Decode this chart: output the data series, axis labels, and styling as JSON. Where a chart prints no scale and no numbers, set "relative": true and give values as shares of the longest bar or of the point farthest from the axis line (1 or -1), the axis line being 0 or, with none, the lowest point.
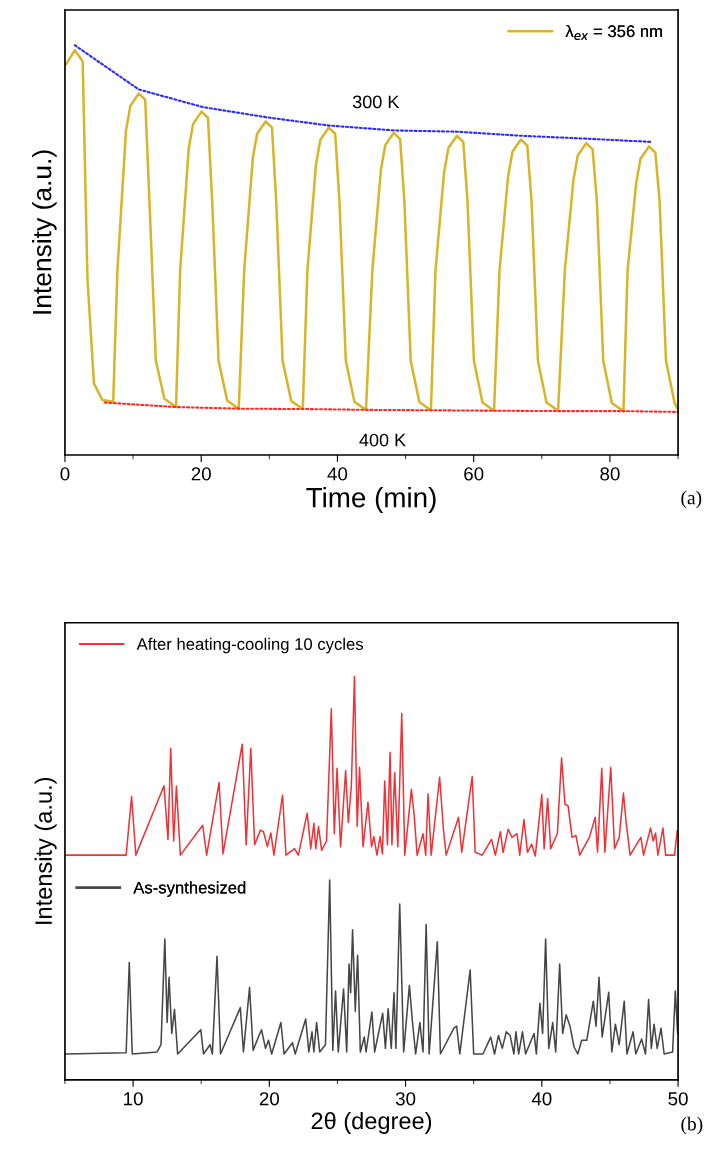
{
  "chart_data": [
    {
      "type": "line",
      "xlabel": "Time (min)",
      "ylabel": "Intensity (a.u.)",
      "xlim": [
        0,
        90
      ],
      "xticks": [
        0,
        20,
        40,
        60,
        80
      ],
      "relative": true,
      "tick_labels": "x",
      "legend": "top right",
      "annotations": [
        "300 K",
        "400 K",
        "(a)"
      ],
      "series": [
        {
          "name": "λ$_{ex}$ = 356 nm",
          "color": "#d8b428",
          "line_style": "solid",
          "x": [
            0.19,
            1.44,
            2.26,
            2.6,
            3.3,
            4.26,
            5.5,
            7.08,
            7.7,
            8.96,
            9.6,
            10.84,
            11.78,
            12.4,
            13.34,
            14.6,
            16.3,
            16.91,
            18.17,
            18.81,
            20.05,
            20.99,
            21.61,
            22.55,
            23.81,
            25.51,
            26.31,
            27.57,
            28.21,
            29.45,
            30.39,
            31.01,
            31.95,
            33.21,
            34.91,
            35.59,
            36.85,
            37.49,
            38.73,
            39.67,
            40.29,
            41.23,
            42.49,
            44.19,
            45.12,
            46.38,
            47.02,
            48.26,
            49.2,
            49.82,
            50.76,
            52.02,
            53.72,
            54.39,
            55.65,
            56.29,
            57.53,
            58.47,
            59.09,
            60.03,
            61.29,
            62.99,
            63.79,
            65.05,
            65.69,
            66.93,
            67.87,
            68.49,
            69.43,
            70.69,
            72.39,
            73.38,
            74.64,
            75.28,
            76.52,
            77.46,
            78.08,
            79.02,
            80.28,
            81.98,
            82.59,
            83.85,
            84.49,
            85.73,
            86.67,
            87.29,
            88.23,
            89.49,
            90
          ],
          "values": [
            0.954,
            0.988,
            0.969,
            0.96,
            0.43,
            0.174,
            0.134,
            0.13,
            0.45,
            0.792,
            0.852,
            0.882,
            0.867,
            0.62,
            0.23,
            0.137,
            0.117,
            0.45,
            0.748,
            0.808,
            0.838,
            0.823,
            0.62,
            0.23,
            0.133,
            0.113,
            0.45,
            0.724,
            0.784,
            0.814,
            0.799,
            0.62,
            0.23,
            0.132,
            0.112,
            0.45,
            0.709,
            0.769,
            0.799,
            0.784,
            0.62,
            0.23,
            0.13,
            0.11,
            0.45,
            0.696,
            0.756,
            0.786,
            0.771,
            0.62,
            0.23,
            0.129,
            0.109,
            0.45,
            0.689,
            0.749,
            0.779,
            0.764,
            0.62,
            0.23,
            0.128,
            0.108,
            0.45,
            0.68,
            0.74,
            0.77,
            0.755,
            0.62,
            0.23,
            0.128,
            0.108,
            0.45,
            0.671,
            0.731,
            0.761,
            0.746,
            0.62,
            0.23,
            0.127,
            0.107,
            0.45,
            0.663,
            0.723,
            0.753,
            0.738,
            0.62,
            0.23,
            0.127,
            0.11
          ]
        },
        {
          "color": "#2a2aff",
          "line_style": "dotted",
          "x": [
            1.44,
            10.84,
            20.24,
            29.64,
            38.73,
            48.44,
            57.53,
            66.93,
            76.52,
            86.05
          ],
          "values": [
            1.0,
            0.892,
            0.849,
            0.824,
            0.804,
            0.792,
            0.789,
            0.779,
            0.772,
            0.764
          ]
        },
        {
          "color": "#ff2a2a",
          "line_style": "dotted",
          "x": [
            5.83,
            16.17,
            25.57,
            35.28,
            44.68,
            54.08,
            63.17,
            72.57,
            81.97,
            90
          ],
          "values": [
            0.128,
            0.117,
            0.113,
            0.112,
            0.11,
            0.109,
            0.108,
            0.107,
            0.107,
            0.105
          ]
        }
      ]
    },
    {
      "type": "line",
      "xlabel": "2θ (degree)",
      "ylabel": "Intensity (a.u.)",
      "xlim": [
        5,
        50
      ],
      "xticks": [
        10,
        20,
        30,
        40,
        50
      ],
      "relative": true,
      "tick_labels": "x",
      "legend": "top left",
      "annotations": [
        "(b)"
      ],
      "series": [
        {
          "name": "After heating-cooling 10 cycles",
          "color": "#ee3338",
          "line_style": "solid",
          "x": [
            5.06,
            9.49,
            9.89,
            10.2,
            12.27,
            12.56,
            12.76,
            12.98,
            13.18,
            13.47,
            15.11,
            15.4,
            16.31,
            16.6,
            18.01,
            18.3,
            18.64,
            18.92,
            19.35,
            19.57,
            19.86,
            20.11,
            20.34,
            20.97,
            21.22,
            21.85,
            22.13,
            22.78,
            23.04,
            23.27,
            23.41,
            23.61,
            23.84,
            24.2,
            24.55,
            24.77,
            24.97,
            25.23,
            25.6,
            25.8,
            26.02,
            26.25,
            26.45,
            26.62,
            26.88,
            27.24,
            27.5,
            27.67,
            27.9,
            28.13,
            28.3,
            28.47,
            28.67,
            28.86,
            29.0,
            29.2,
            29.43,
            29.72,
            29.94,
            30.43,
            30.63,
            30.85,
            31.28,
            31.48,
            31.65,
            31.88,
            32.5,
            32.78,
            32.98,
            33.89,
            34.12,
            34.89,
            35.11,
            35.63,
            36.31,
            36.59,
            36.96,
            37.16,
            37.53,
            37.81,
            38.18,
            38.38,
            38.69,
            38.95,
            39.26,
            39.52,
            40.0,
            40.17,
            40.43,
            40.65,
            41.14,
            41.45,
            41.7,
            41.93,
            42.22,
            42.5,
            42.78,
            43.49,
            43.92,
            44.09,
            44.4,
            44.63,
            45.06,
            45.34,
            45.68,
            45.99,
            46.19,
            46.48,
            47.27,
            47.47,
            47.98,
            48.18,
            48.35,
            48.52,
            48.89,
            49.09,
            49.74,
            49.94
          ],
          "values": [
            0.557,
            0.557,
            0.702,
            0.557,
            0.729,
            0.596,
            0.821,
            0.592,
            0.728,
            0.557,
            0.631,
            0.557,
            0.737,
            0.56,
            0.832,
            0.583,
            0.821,
            0.583,
            0.619,
            0.615,
            0.578,
            0.612,
            0.557,
            0.706,
            0.557,
            0.573,
            0.557,
            0.661,
            0.573,
            0.636,
            0.573,
            0.628,
            0.569,
            0.592,
            0.92,
            0.61,
            0.772,
            0.578,
            0.766,
            0.638,
            0.729,
            1.0,
            0.628,
            0.775,
            0.578,
            0.688,
            0.578,
            0.603,
            0.557,
            0.603,
            0.56,
            0.741,
            0.583,
            0.812,
            0.583,
            0.761,
            0.578,
            0.908,
            0.557,
            0.72,
            0.656,
            0.557,
            0.61,
            0.557,
            0.709,
            0.557,
            0.75,
            0.621,
            0.557,
            0.651,
            0.564,
            0.752,
            0.564,
            0.557,
            0.596,
            0.557,
            0.615,
            0.564,
            0.621,
            0.601,
            0.61,
            0.557,
            0.645,
            0.564,
            0.584,
            0.555,
            0.707,
            0.573,
            0.697,
            0.573,
            0.61,
            0.798,
            0.683,
            0.679,
            0.601,
            0.606,
            0.557,
            0.601,
            0.651,
            0.564,
            0.772,
            0.564,
            0.775,
            0.573,
            0.601,
            0.711,
            0.638,
            0.557,
            0.601,
            0.557,
            0.624,
            0.592,
            0.612,
            0.557,
            0.624,
            0.557,
            0.557,
            0.617
          ]
        },
        {
          "name": "As-synthesized",
          "color": "#454545",
          "line_style": "solid",
          "x": [
            5.06,
            9.49,
            9.72,
            9.94,
            11.76,
            12.05,
            12.33,
            12.5,
            12.64,
            12.84,
            13.04,
            13.27,
            14.97,
            15.17,
            15.65,
            15.82,
            16.16,
            16.42,
            17.87,
            18.1,
            18.55,
            18.81,
            19.2,
            19.43,
            19.72,
            19.94,
            20.17,
            20.85,
            21.08,
            21.7,
            21.9,
            22.67,
            22.9,
            23.13,
            23.27,
            23.47,
            23.7,
            24.12,
            24.43,
            24.66,
            24.86,
            25.06,
            25.45,
            25.68,
            25.85,
            25.97,
            26.11,
            26.31,
            26.48,
            26.68,
            26.97,
            27.1,
            27.53,
            27.73,
            28.32,
            28.52,
            28.72,
            28.95,
            29.15,
            29.29,
            29.57,
            29.86,
            30.28,
            30.51,
            30.74,
            31.05,
            31.28,
            31.51,
            31.73,
            32.33,
            32.56,
            33.55,
            33.75,
            33.98,
            34.74,
            35.0,
            35.68,
            36.25,
            36.53,
            36.82,
            37.1,
            37.39,
            37.67,
            37.95,
            38.1,
            38.3,
            38.58,
            38.81,
            39.43,
            39.6,
            39.86,
            40.06,
            40.28,
            40.51,
            40.8,
            41.02,
            41.31,
            41.53,
            41.79,
            42.07,
            42.36,
            42.64,
            42.93,
            43.3,
            43.78,
            43.98,
            44.2,
            44.43,
            44.91,
            45.14,
            45.4,
            45.68,
            46.05,
            46.25,
            46.7,
            46.9,
            47.33,
            47.61,
            47.84,
            48.04,
            48.24,
            48.47,
            48.75,
            48.98,
            49.6,
            49.8,
            49.97
          ],
          "values": [
            0.064,
            0.067,
            0.291,
            0.064,
            0.069,
            0.087,
            0.349,
            0.142,
            0.254,
            0.115,
            0.174,
            0.064,
            0.124,
            0.064,
            0.087,
            0.064,
            0.306,
            0.064,
            0.179,
            0.069,
            0.229,
            0.073,
            0.106,
            0.124,
            0.078,
            0.098,
            0.064,
            0.142,
            0.064,
            0.092,
            0.064,
            0.151,
            0.069,
            0.119,
            0.069,
            0.142,
            0.069,
            0.087,
            0.495,
            0.073,
            0.22,
            0.069,
            0.225,
            0.069,
            0.287,
            0.216,
            0.372,
            0.17,
            0.309,
            0.069,
            0.106,
            0.069,
            0.168,
            0.069,
            0.165,
            0.078,
            0.176,
            0.078,
            0.216,
            0.078,
            0.436,
            0.069,
            0.234,
            0.142,
            0.064,
            0.142,
            0.069,
            0.385,
            0.064,
            0.342,
            0.064,
            0.128,
            0.133,
            0.064,
            0.272,
            0.064,
            0.064,
            0.106,
            0.064,
            0.11,
            0.078,
            0.119,
            0.11,
            0.064,
            0.119,
            0.064,
            0.119,
            0.064,
            0.115,
            0.064,
            0.19,
            0.115,
            0.349,
            0.078,
            0.142,
            0.069,
            0.287,
            0.115,
            0.161,
            0.133,
            0.082,
            0.064,
            0.098,
            0.098,
            0.195,
            0.133,
            0.254,
            0.106,
            0.217,
            0.069,
            0.138,
            0.087,
            0.195,
            0.064,
            0.119,
            0.064,
            0.101,
            0.064,
            0.199,
            0.078,
            0.138,
            0.078,
            0.128,
            0.064,
            0.069,
            0.22,
            0.115
          ]
        }
      ]
    }
  ]
}
